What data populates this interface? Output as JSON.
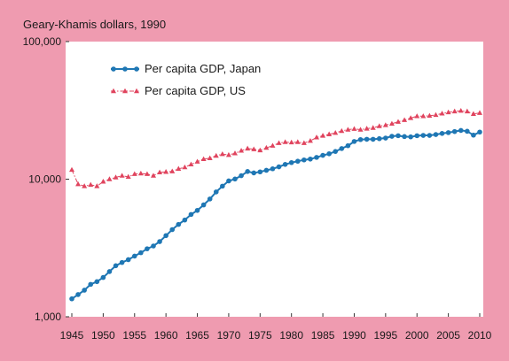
{
  "chart_data": {
    "type": "line",
    "ylabel": "Geary-Khamis dollars, 1990",
    "yscale": "log",
    "ylim": [
      1000,
      100000
    ],
    "xlim": [
      1945,
      2010
    ],
    "y_ticks": [
      {
        "value": 1000,
        "label": "1,000"
      },
      {
        "value": 10000,
        "label": "10,000"
      },
      {
        "value": 100000,
        "label": "100,000"
      }
    ],
    "x_ticks": [
      {
        "value": 1945,
        "label": "1945"
      },
      {
        "value": 1950,
        "label": "1950"
      },
      {
        "value": 1955,
        "label": "1955"
      },
      {
        "value": 1960,
        "label": "1960"
      },
      {
        "value": 1965,
        "label": "1965"
      },
      {
        "value": 1970,
        "label": "1970"
      },
      {
        "value": 1975,
        "label": "1975"
      },
      {
        "value": 1980,
        "label": "1980"
      },
      {
        "value": 1985,
        "label": "1985"
      },
      {
        "value": 1990,
        "label": "1990"
      },
      {
        "value": 1995,
        "label": "1995"
      },
      {
        "value": 2000,
        "label": "2000"
      },
      {
        "value": 2005,
        "label": "2005"
      },
      {
        "value": 2010,
        "label": "2010"
      }
    ],
    "legend_position": "top-left",
    "grid": false,
    "x": [
      1945,
      1946,
      1947,
      1948,
      1949,
      1950,
      1951,
      1952,
      1953,
      1954,
      1955,
      1956,
      1957,
      1958,
      1959,
      1960,
      1961,
      1962,
      1963,
      1964,
      1965,
      1966,
      1967,
      1968,
      1969,
      1970,
      1971,
      1972,
      1973,
      1974,
      1975,
      1976,
      1977,
      1978,
      1979,
      1980,
      1981,
      1982,
      1983,
      1984,
      1985,
      1986,
      1987,
      1988,
      1989,
      1990,
      1991,
      1992,
      1993,
      1994,
      1995,
      1996,
      1997,
      1998,
      1999,
      2000,
      2001,
      2002,
      2003,
      2004,
      2005,
      2006,
      2007,
      2008,
      2009,
      2010
    ],
    "series": [
      {
        "name": "Per capita GDP, Japan",
        "color": "#1f77b4",
        "marker": "circle",
        "line": "solid",
        "values": [
          1350,
          1450,
          1560,
          1720,
          1800,
          1930,
          2130,
          2350,
          2480,
          2600,
          2760,
          2920,
          3120,
          3270,
          3520,
          3890,
          4300,
          4690,
          5050,
          5540,
          5930,
          6500,
          7180,
          8080,
          8900,
          9710,
          10030,
          10600,
          11370,
          11100,
          11300,
          11600,
          11900,
          12300,
          12800,
          13200,
          13500,
          13800,
          14000,
          14400,
          14900,
          15300,
          15900,
          16700,
          17500,
          18800,
          19400,
          19500,
          19500,
          19700,
          19900,
          20500,
          20700,
          20400,
          20300,
          20700,
          20800,
          20800,
          21100,
          21500,
          21800,
          22200,
          22600,
          22300,
          20900,
          22000
        ]
      },
      {
        "name": "Per capita GDP, US",
        "color": "#e0445e",
        "marker": "triangle",
        "line": "dash-dot",
        "values": [
          11700,
          9200,
          8900,
          9100,
          8900,
          9600,
          10000,
          10300,
          10600,
          10400,
          10900,
          11000,
          10900,
          10600,
          11200,
          11300,
          11400,
          11900,
          12200,
          12800,
          13400,
          14000,
          14200,
          14800,
          15200,
          15000,
          15400,
          16100,
          16700,
          16500,
          16200,
          16900,
          17500,
          18300,
          18600,
          18500,
          18600,
          18300,
          19000,
          20100,
          20700,
          21200,
          21700,
          22400,
          22900,
          23200,
          22900,
          23300,
          23600,
          24300,
          24700,
          25300,
          26100,
          26900,
          27800,
          28700,
          28700,
          28900,
          29300,
          30000,
          30600,
          31100,
          31400,
          31100,
          29800,
          30300
        ]
      }
    ]
  }
}
